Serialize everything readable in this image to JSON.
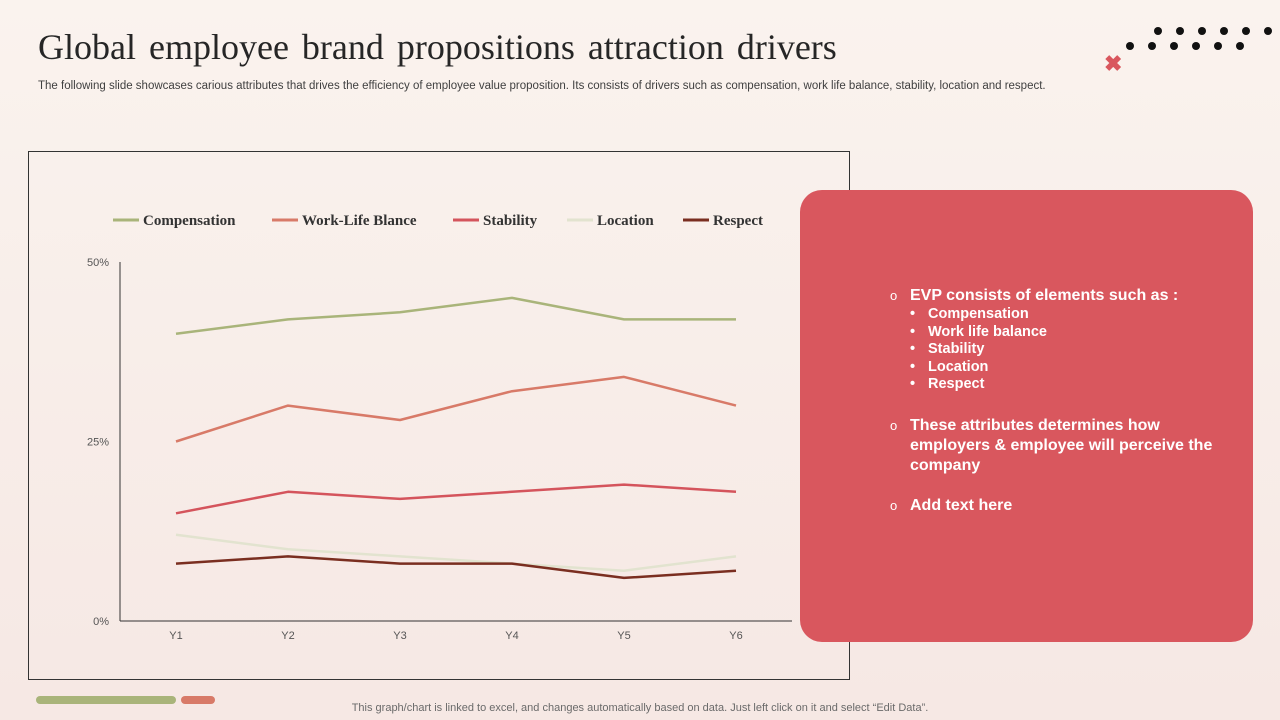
{
  "page": {
    "title": "Global employee  brand  propositions  attraction  drivers",
    "subtitle": "The following slide showcases carious attributes that drives the efficiency of employee value proposition. Its consists of drivers such as compensation, work life balance, stability, location and respect.",
    "footer": "This graph/chart is linked to excel,  and changes automatically based on data. Just left click on it and select “Edit Data”."
  },
  "panel": {
    "bullet1": "EVP consists of elements such as :",
    "items": [
      "Compensation",
      "Work life balance",
      "Stability",
      "Location",
      "Respect"
    ],
    "bullet2": "These attributes determines how employers & employee will perceive the company",
    "bullet3": "Add text here"
  },
  "chart_data": {
    "type": "line",
    "categories": [
      "Y1",
      "Y2",
      "Y3",
      "Y4",
      "Y5",
      "Y6"
    ],
    "ylim": [
      0,
      0.5
    ],
    "yticks": [
      "0%",
      "25%",
      "50%"
    ],
    "legend_position": "top",
    "grid": false,
    "series": [
      {
        "name": "Compensation",
        "color": "#a9b47a",
        "values": [
          0.4,
          0.42,
          0.43,
          0.45,
          0.42,
          0.42
        ]
      },
      {
        "name": "Work-Life Blance",
        "color": "#d87a68",
        "values": [
          0.25,
          0.3,
          0.28,
          0.32,
          0.34,
          0.3
        ]
      },
      {
        "name": "Stability",
        "color": "#d4545c",
        "values": [
          0.15,
          0.18,
          0.17,
          0.18,
          0.19,
          0.18
        ]
      },
      {
        "name": "Location",
        "color": "#e2e3cf",
        "values": [
          0.12,
          0.1,
          0.09,
          0.08,
          0.07,
          0.09
        ]
      },
      {
        "name": "Respect",
        "color": "#7a2e20",
        "values": [
          0.08,
          0.09,
          0.08,
          0.08,
          0.06,
          0.07
        ]
      }
    ]
  }
}
